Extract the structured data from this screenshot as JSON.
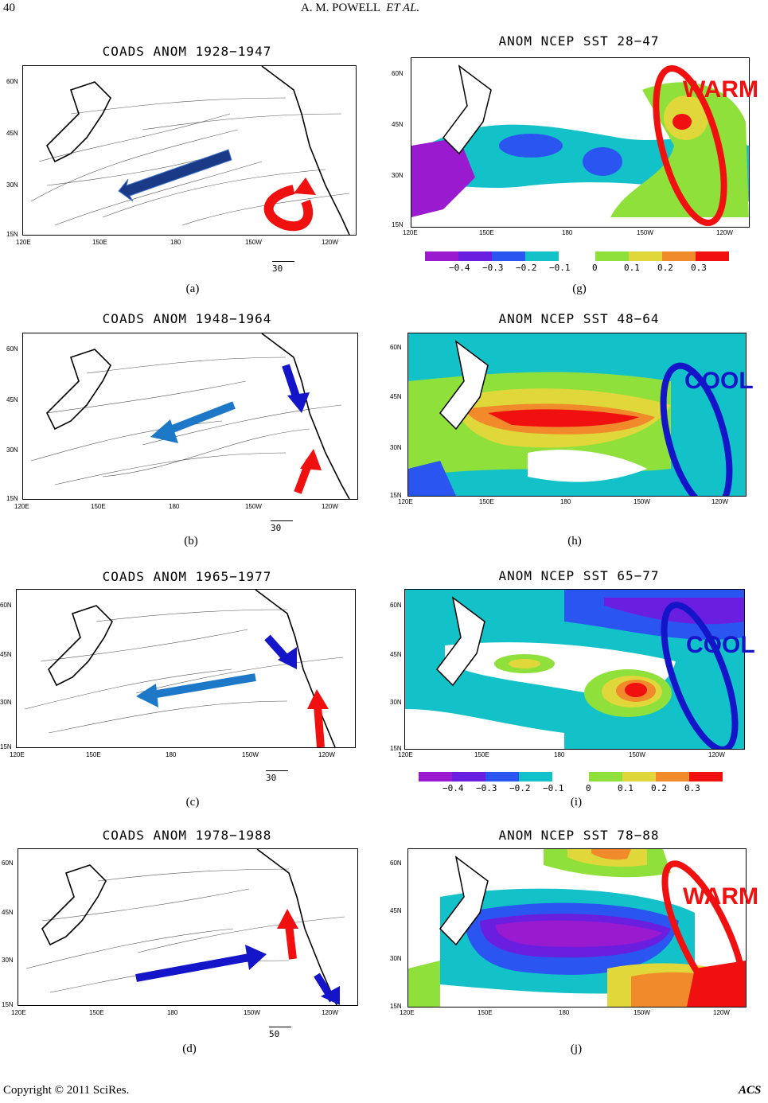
{
  "header": {
    "page_number": "40",
    "authors": "A. M. POWELL",
    "et_al": "ET AL."
  },
  "axis": {
    "lat": [
      "60N",
      "45N",
      "30N",
      "15N"
    ],
    "lon": [
      "120E",
      "150E",
      "180",
      "150W",
      "120W"
    ]
  },
  "left_panels": [
    {
      "title": "COADS ANOM 1928−1947",
      "label": "(a)",
      "scale": "30"
    },
    {
      "title": "COADS ANOM 1948−1964",
      "label": "(b)",
      "scale": "30"
    },
    {
      "title": "COADS ANOM 1965−1977",
      "label": "(c)",
      "scale": "30"
    },
    {
      "title": "COADS ANOM 1978−1988",
      "label": "(d)",
      "scale": "50"
    }
  ],
  "right_panels": [
    {
      "title": "ANOM NCEP SST 28−47",
      "label": "(g)",
      "tag": "WARM"
    },
    {
      "title": "ANOM NCEP SST 48−64",
      "label": "(h)",
      "tag": "COOL"
    },
    {
      "title": "ANOM NCEP SST 65−77",
      "label": "(i)",
      "tag": "COOL"
    },
    {
      "title": "ANOM NCEP SST 78−88",
      "label": "(j)",
      "tag": "WARM"
    }
  ],
  "colorbar": {
    "neg_ticks": [
      "−0.4",
      "−0.3",
      "−0.2",
      "−0.1"
    ],
    "pos_ticks": [
      "0",
      "0.1",
      "0.2",
      "0.3"
    ],
    "neg_colors": [
      "#9a1ad0",
      "#6a1fe0",
      "#2a55f0",
      "#12c2c8"
    ],
    "pos_colors": [
      "#8fe03a",
      "#e0d83a",
      "#f08a2a",
      "#f01010"
    ]
  },
  "colors": {
    "warm": "#f01010",
    "cool": "#1414c8",
    "arrow_blue": "#1e78c8",
    "arrow_dark": "#1a3a88",
    "arrow_red": "#f01010"
  },
  "footer": {
    "copyright": "Copyright © 2011 SciRes.",
    "journal": "ACS"
  }
}
